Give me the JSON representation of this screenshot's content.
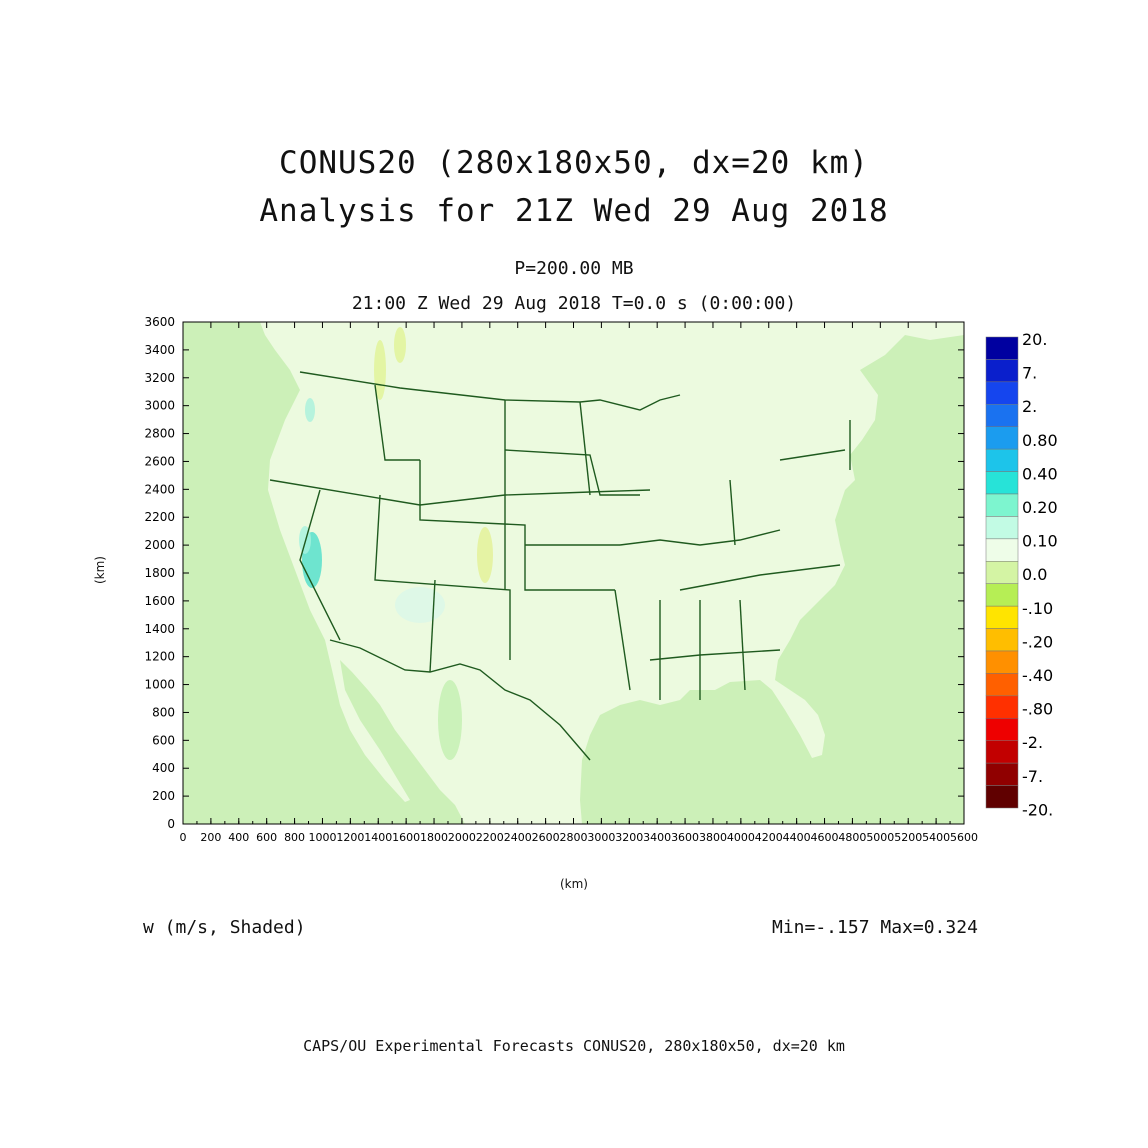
{
  "header": {
    "title_line1": "CONUS20 (280x180x50, dx=20 km)",
    "title_line2": "Analysis for 21Z Wed 29 Aug 2018",
    "level": "P=200.00 MB",
    "valid_time": "21:00 Z Wed 29 Aug 2018    T=0.0 s (0:00:00)"
  },
  "map": {
    "x_axis_label": "(km)",
    "y_axis_label": "(km)",
    "x_ticks": [
      "0",
      "200",
      "400",
      "600",
      "800",
      "1000",
      "1200",
      "1400",
      "1600",
      "1800",
      "2000",
      "2200",
      "2400",
      "2600",
      "2800",
      "3000",
      "3200",
      "3400",
      "3600",
      "3800",
      "4000",
      "4200",
      "4400",
      "4600",
      "4800",
      "5000",
      "5200",
      "5400",
      "5600"
    ],
    "y_ticks": [
      "0",
      "200",
      "400",
      "600",
      "800",
      "1000",
      "1200",
      "1400",
      "1600",
      "1800",
      "2000",
      "2200",
      "2400",
      "2600",
      "2800",
      "3000",
      "3200",
      "3400",
      "3600"
    ],
    "background_color": "#ccf0b8",
    "land_color": "#ecfadf",
    "boundary_color": "#1f5a1f"
  },
  "colorbar": {
    "labels": [
      "20.",
      "7.",
      "2.",
      "0.80",
      "0.40",
      "0.20",
      "0.10",
      "0.0",
      "-.10",
      "-.20",
      "-.40",
      "-.80",
      "-2.",
      "-7.",
      "-20."
    ],
    "colors": [
      "#0000a0",
      "#0a1fcc",
      "#1545ee",
      "#1a72f0",
      "#1b9cef",
      "#1dc4ea",
      "#27e3d8",
      "#7df5cf",
      "#c2fbe4",
      "#eefde8",
      "#d4f4a4",
      "#b6ee55",
      "#ffe400",
      "#ffbe00",
      "#ff9000",
      "#ff6000",
      "#ff3000",
      "#ee0000",
      "#c20000",
      "#900000",
      "#600000"
    ]
  },
  "footer": {
    "field_label": "w (m/s, Shaded)",
    "minmax": "Min=-.157  Max=0.324",
    "credit": "CAPS/OU Experimental Forecasts  CONUS20, 280x180x50, dx=20 km"
  }
}
